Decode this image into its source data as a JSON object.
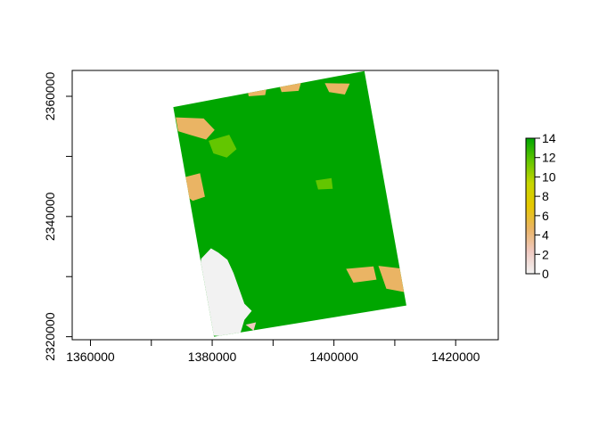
{
  "chart_data": {
    "type": "heatmap",
    "title": "",
    "xlabel": "",
    "ylabel": "",
    "xlim": [
      1357000,
      1427000
    ],
    "ylim": [
      2319500,
      2364300
    ],
    "x_ticks": [
      {
        "value": 1360000,
        "label": "1360000"
      },
      {
        "value": 1370000,
        "label": ""
      },
      {
        "value": 1380000,
        "label": "1380000"
      },
      {
        "value": 1390000,
        "label": ""
      },
      {
        "value": 1400000,
        "label": "1400000"
      },
      {
        "value": 1410000,
        "label": ""
      },
      {
        "value": 1420000,
        "label": "1420000"
      }
    ],
    "y_ticks": [
      {
        "value": 2320000,
        "label": "2320000"
      },
      {
        "value": 2330000,
        "label": ""
      },
      {
        "value": 2340000,
        "label": "2340000"
      },
      {
        "value": 2350000,
        "label": ""
      },
      {
        "value": 2360000,
        "label": "2360000"
      }
    ],
    "raster_extent": {
      "footprint": [
        [
          1373600,
          2358200
        ],
        [
          1405000,
          2364200
        ],
        [
          1411900,
          2325200
        ],
        [
          1380300,
          2320000
        ]
      ]
    },
    "regions": [
      {
        "name": "dominant",
        "value": 13,
        "color": "#00a600"
      },
      {
        "name": "no-data-area",
        "value": 0,
        "color": "#f2f2f2",
        "polygon": [
          [
            1378200,
            2333000
          ],
          [
            1379800,
            2334700
          ],
          [
            1381000,
            2334000
          ],
          [
            1382500,
            2332800
          ],
          [
            1383500,
            2330600
          ],
          [
            1385300,
            2325500
          ],
          [
            1386500,
            2324300
          ],
          [
            1385300,
            2322800
          ],
          [
            1384600,
            2320500
          ],
          [
            1382800,
            2320000
          ],
          [
            1380000,
            2320200
          ],
          [
            1379400,
            2321400
          ],
          [
            1378000,
            2325500
          ],
          [
            1377500,
            2329500
          ]
        ]
      },
      {
        "name": "west-gap-upper",
        "value": 0,
        "color": "#f2f2f2",
        "polygon": [
          [
            1374400,
            2356000
          ],
          [
            1377600,
            2355800
          ],
          [
            1379300,
            2354800
          ],
          [
            1378600,
            2353500
          ],
          [
            1377300,
            2354000
          ],
          [
            1376000,
            2354500
          ],
          [
            1374600,
            2354800
          ]
        ]
      },
      {
        "name": "west-gap-lower",
        "value": 0,
        "color": "#f2f2f2",
        "polygon": [
          [
            1375800,
            2345600
          ],
          [
            1376900,
            2346200
          ],
          [
            1378000,
            2344300
          ],
          [
            1376800,
            2343800
          ],
          [
            1375900,
            2344500
          ]
        ]
      },
      {
        "name": "west-band-1",
        "value": 4,
        "color": "#eab464",
        "polygon": [
          [
            1374000,
            2356500
          ],
          [
            1378600,
            2356300
          ],
          [
            1380400,
            2354400
          ],
          [
            1379000,
            2352800
          ],
          [
            1376300,
            2353600
          ],
          [
            1374400,
            2354200
          ]
        ]
      },
      {
        "name": "west-band-2",
        "value": 4,
        "color": "#eab464",
        "polygon": [
          [
            1375300,
            2346500
          ],
          [
            1378000,
            2347200
          ],
          [
            1378800,
            2343300
          ],
          [
            1376800,
            2342600
          ],
          [
            1375300,
            2343800
          ]
        ]
      },
      {
        "name": "east-patch-1",
        "value": 4,
        "color": "#eab464",
        "polygon": [
          [
            1402000,
            2331300
          ],
          [
            1406500,
            2331700
          ],
          [
            1407000,
            2329500
          ],
          [
            1403200,
            2329000
          ]
        ]
      },
      {
        "name": "east-patch-2",
        "value": 4,
        "color": "#eab464",
        "polygon": [
          [
            1407300,
            2331800
          ],
          [
            1411500,
            2331300
          ],
          [
            1411700,
            2327400
          ],
          [
            1408600,
            2328000
          ]
        ]
      },
      {
        "name": "north-patch-1",
        "value": 4,
        "color": "#eab464",
        "polygon": [
          [
            1385700,
            2361400
          ],
          [
            1389000,
            2361800
          ],
          [
            1388700,
            2360200
          ],
          [
            1386000,
            2360000
          ]
        ]
      },
      {
        "name": "north-patch-2",
        "value": 4,
        "color": "#eab464",
        "polygon": [
          [
            1390800,
            2362500
          ],
          [
            1394800,
            2362900
          ],
          [
            1394200,
            2360900
          ],
          [
            1391400,
            2360700
          ]
        ]
      },
      {
        "name": "north-patch-3",
        "value": 4,
        "color": "#eab464",
        "polygon": [
          [
            1398500,
            2362200
          ],
          [
            1402600,
            2362100
          ],
          [
            1401800,
            2360300
          ],
          [
            1399200,
            2360700
          ]
        ]
      },
      {
        "name": "light-green-1",
        "value": 10,
        "color": "#63c600",
        "polygon": [
          [
            1379400,
            2352600
          ],
          [
            1382800,
            2353600
          ],
          [
            1384000,
            2351200
          ],
          [
            1382400,
            2349800
          ],
          [
            1380200,
            2350500
          ]
        ]
      },
      {
        "name": "light-green-2",
        "value": 10,
        "color": "#63c600",
        "polygon": [
          [
            1397000,
            2346000
          ],
          [
            1399600,
            2346400
          ],
          [
            1399800,
            2344600
          ],
          [
            1397400,
            2344500
          ]
        ]
      },
      {
        "name": "pink-pixels",
        "value": 2,
        "color": "#f0c9c0",
        "polygon": [
          [
            1385500,
            2322000
          ],
          [
            1387200,
            2322400
          ],
          [
            1386800,
            2321000
          ]
        ]
      }
    ],
    "legend": {
      "position": "right",
      "min": 0,
      "max": 14,
      "ticks": [
        0,
        2,
        4,
        6,
        8,
        10,
        12,
        14
      ],
      "tick_labels": [
        "0",
        "2",
        "4",
        "6",
        "8",
        "10",
        "12",
        "14"
      ],
      "color_stops": [
        "#f2f2f2",
        "#f0c9c0",
        "#eab464",
        "#e6c800",
        "#c7d600",
        "#63c600",
        "#00a600"
      ]
    }
  }
}
